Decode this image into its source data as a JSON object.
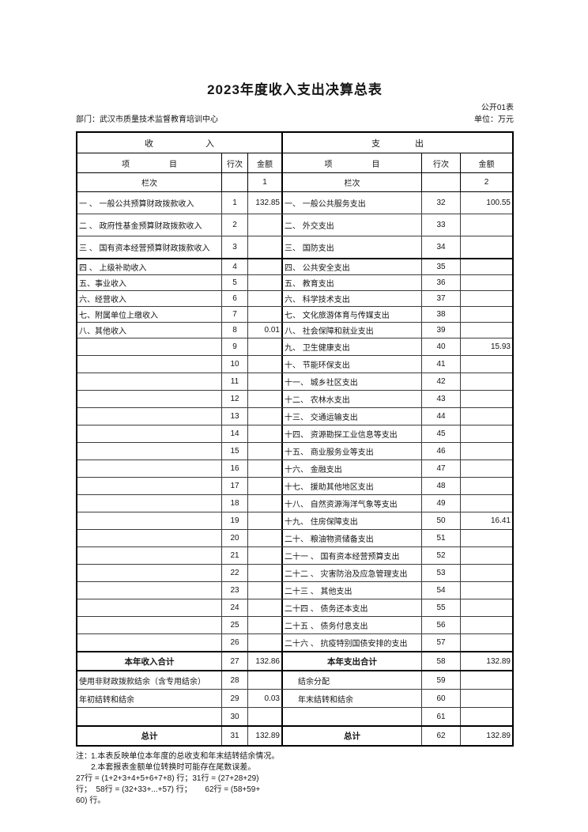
{
  "page": {
    "title": "2023年度收入支出决算总表",
    "form_label": "公开01表",
    "department": "部门：武汉市质量技术监督教育培训中心",
    "unit": "单位：万元"
  },
  "table": {
    "header": {
      "income_title": "收　　　　　　入",
      "expense_title": "支　　　　出",
      "item": "项　　　　　目",
      "line_no": "行次",
      "amount": "金额",
      "col_index_label": "栏次",
      "income_col_index": "1",
      "expense_col_index": "2"
    },
    "rows": [
      {
        "income": {
          "item": "一 、 一般公共预算财政拨款收入",
          "line": "1",
          "amount": "132.85"
        },
        "expense": {
          "item": "一、 一般公共服务支出",
          "line": "32",
          "amount": "100.55"
        }
      },
      {
        "income": {
          "item": "二 、 政府性基金预算财政拨款收入",
          "line": "2",
          "amount": ""
        },
        "expense": {
          "item": "二、 外交支出",
          "line": "33",
          "amount": ""
        }
      },
      {
        "income": {
          "item": "三 、 国有资本经营预算财政拨款收入",
          "line": "3",
          "amount": ""
        },
        "expense": {
          "item": "三、 国防支出",
          "line": "34",
          "amount": ""
        }
      },
      {
        "income": {
          "item": "四 、 上级补助收入",
          "line": "4",
          "amount": ""
        },
        "expense": {
          "item": "四、 公共安全支出",
          "line": "35",
          "amount": ""
        }
      },
      {
        "income": {
          "item": "五、事业收入",
          "line": "5",
          "amount": ""
        },
        "expense": {
          "item": "五、 教育支出",
          "line": "36",
          "amount": ""
        }
      },
      {
        "income": {
          "item": "六、经营收入",
          "line": "6",
          "amount": ""
        },
        "expense": {
          "item": "六、 科学技术支出",
          "line": "37",
          "amount": ""
        }
      },
      {
        "income": {
          "item": "七、附属单位上缴收入",
          "line": "7",
          "amount": ""
        },
        "expense": {
          "item": "七、 文化旅游体育与传媒支出",
          "line": "38",
          "amount": ""
        }
      },
      {
        "income": {
          "item": "八、其他收入",
          "line": "8",
          "amount": "0.01"
        },
        "expense": {
          "item": "八、 社会保障和就业支出",
          "line": "39",
          "amount": ""
        }
      },
      {
        "income": {
          "item": "",
          "line": "9",
          "amount": ""
        },
        "expense": {
          "item": "九、 卫生健康支出",
          "line": "40",
          "amount": "15.93"
        }
      },
      {
        "income": {
          "item": "",
          "line": "10",
          "amount": ""
        },
        "expense": {
          "item": "十、 节能环保支出",
          "line": "41",
          "amount": ""
        }
      },
      {
        "income": {
          "item": "",
          "line": "11",
          "amount": ""
        },
        "expense": {
          "item": "十一、 城乡社区支出",
          "line": "42",
          "amount": ""
        }
      },
      {
        "income": {
          "item": "",
          "line": "12",
          "amount": ""
        },
        "expense": {
          "item": "十二、 农林水支出",
          "line": "43",
          "amount": ""
        }
      },
      {
        "income": {
          "item": "",
          "line": "13",
          "amount": ""
        },
        "expense": {
          "item": "十三、 交通运输支出",
          "line": "44",
          "amount": ""
        }
      },
      {
        "income": {
          "item": "",
          "line": "14",
          "amount": ""
        },
        "expense": {
          "item": "十四、 资源勘探工业信息等支出",
          "line": "45",
          "amount": ""
        }
      },
      {
        "income": {
          "item": "",
          "line": "15",
          "amount": ""
        },
        "expense": {
          "item": "十五、 商业服务业等支出",
          "line": "46",
          "amount": ""
        }
      },
      {
        "income": {
          "item": "",
          "line": "16",
          "amount": ""
        },
        "expense": {
          "item": "十六、 金融支出",
          "line": "47",
          "amount": ""
        }
      },
      {
        "income": {
          "item": "",
          "line": "17",
          "amount": ""
        },
        "expense": {
          "item": "十七、 援助其他地区支出",
          "line": "48",
          "amount": ""
        }
      },
      {
        "income": {
          "item": "",
          "line": "18",
          "amount": ""
        },
        "expense": {
          "item": "十八、 自然资源海洋气象等支出",
          "line": "49",
          "amount": ""
        }
      },
      {
        "income": {
          "item": "",
          "line": "19",
          "amount": ""
        },
        "expense": {
          "item": "十九、 住房保障支出",
          "line": "50",
          "amount": "16.41"
        }
      },
      {
        "income": {
          "item": "",
          "line": "20",
          "amount": ""
        },
        "expense": {
          "item": "二十、 粮油物资储备支出",
          "line": "51",
          "amount": ""
        }
      },
      {
        "income": {
          "item": "",
          "line": "21",
          "amount": ""
        },
        "expense": {
          "item": "二十一 、 国有资本经营预算支出",
          "line": "52",
          "amount": ""
        }
      },
      {
        "income": {
          "item": "",
          "line": "22",
          "amount": ""
        },
        "expense": {
          "item": "二十二 、 灾害防治及应急管理支出",
          "line": "53",
          "amount": ""
        }
      },
      {
        "income": {
          "item": "",
          "line": "23",
          "amount": ""
        },
        "expense": {
          "item": "二十三 、 其他支出",
          "line": "54",
          "amount": ""
        }
      },
      {
        "income": {
          "item": "",
          "line": "24",
          "amount": ""
        },
        "expense": {
          "item": "二十四 、 债务还本支出",
          "line": "55",
          "amount": ""
        }
      },
      {
        "income": {
          "item": "",
          "line": "25",
          "amount": ""
        },
        "expense": {
          "item": "二十五 、 债务付息支出",
          "line": "56",
          "amount": ""
        }
      },
      {
        "income": {
          "item": "",
          "line": "26",
          "amount": ""
        },
        "expense": {
          "item": "二十六 、 抗疫特别国债安排的支出",
          "line": "57",
          "amount": ""
        }
      },
      {
        "type": "total",
        "income": {
          "item": "本年收入合计",
          "line": "27",
          "amount": "132.86"
        },
        "expense": {
          "item": "本年支出合计",
          "line": "58",
          "amount": "132.89"
        }
      },
      {
        "income": {
          "item": "使用非财政拨款结余（含专用结余）",
          "line": "28",
          "amount": ""
        },
        "expense": {
          "item": "结余分配",
          "line": "59",
          "amount": "",
          "indent": true
        }
      },
      {
        "income": {
          "item": "年初结转和结余",
          "line": "29",
          "amount": "0.03"
        },
        "expense": {
          "item": "年末结转和结余",
          "line": "60",
          "amount": "",
          "indent": true
        }
      },
      {
        "income": {
          "item": "",
          "line": "30",
          "amount": ""
        },
        "expense": {
          "item": "",
          "line": "61",
          "amount": ""
        }
      },
      {
        "type": "total",
        "income": {
          "item": "总计",
          "line": "31",
          "amount": "132.89"
        },
        "expense": {
          "item": "总计",
          "line": "62",
          "amount": "132.89"
        }
      }
    ]
  },
  "notes": {
    "label": "注：",
    "note1": "1.本表反映单位本年度的总收支和年末结转结余情况。",
    "note2": "2.本套报表金额单位转换时可能存在尾数误差。",
    "formula_lines": [
      "27行 = (1+2+3+4+5+6+7+8) 行；31行 = (27+28+29)",
      "行；  58行 = (32+33+...+57) 行；      62行 = (58+59+",
      "60) 行。"
    ]
  }
}
